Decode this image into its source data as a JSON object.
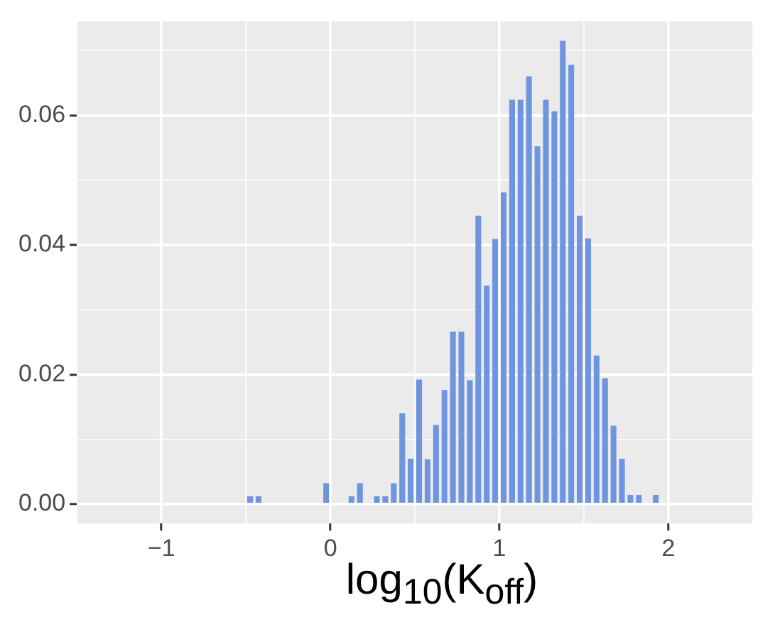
{
  "chart_data": {
    "type": "histogram",
    "xlabel": "log$_{10}$(K$_{off}$)",
    "bins": [
      -0.5,
      -0.45,
      -0.4,
      -0.35,
      -0.3,
      -0.25,
      -0.2,
      -0.15,
      -0.1,
      -0.05,
      0,
      0.05,
      0.1,
      0.15,
      0.2,
      0.25,
      0.3,
      0.35,
      0.4,
      0.45,
      0.5,
      0.55,
      0.6,
      0.65,
      0.7,
      0.75,
      0.8,
      0.85,
      0.9,
      0.95,
      1,
      1.05,
      1.1,
      1.15,
      1.2,
      1.25,
      1.3,
      1.35,
      1.4,
      1.45,
      1.5,
      1.55,
      1.6,
      1.65,
      1.7,
      1.75,
      1.8,
      1.85,
      1.9,
      1.95
    ],
    "values": [
      0.0012,
      0.0012,
      0,
      0,
      0,
      0,
      0,
      0,
      0,
      0.0032,
      0,
      0,
      0.0012,
      0.0032,
      0,
      0.0012,
      0.0012,
      0.0032,
      0.014,
      0.007,
      0.0192,
      0.0069,
      0.0122,
      0.0176,
      0.0266,
      0.0266,
      0.0191,
      0.0445,
      0.0337,
      0.0409,
      0.0481,
      0.0624,
      0.0624,
      0.066,
      0.0552,
      0.0624,
      0.0606,
      0.0715,
      0.0678,
      0.0445,
      0.041,
      0.0229,
      0.0194,
      0.0121,
      0.007,
      0.0014,
      0.0014,
      0,
      0.0014
    ],
    "color": "#6f95e0",
    "xlim": [
      -1.5,
      2.5
    ],
    "xticks": [
      {
        "value": -1.5,
        "label": null
      },
      {
        "value": -1,
        "label": "−1"
      },
      {
        "value": -0.5,
        "label": null
      },
      {
        "value": 0,
        "label": "0"
      },
      {
        "value": 0.5,
        "label": null
      },
      {
        "value": 1,
        "label": "1"
      },
      {
        "value": 1.5,
        "label": null
      },
      {
        "value": 2,
        "label": "2"
      },
      {
        "value": 2.5,
        "label": null
      }
    ],
    "ylim": [
      -0.003,
      0.0745
    ],
    "yticks": [
      {
        "value": 0,
        "label": "0.00"
      },
      {
        "value": 0.01,
        "label": null
      },
      {
        "value": 0.02,
        "label": "0.02"
      },
      {
        "value": 0.03,
        "label": null
      },
      {
        "value": 0.04,
        "label": "0.04"
      },
      {
        "value": 0.05,
        "label": null
      },
      {
        "value": 0.06,
        "label": "0.06"
      },
      {
        "value": 0.07,
        "label": null
      }
    ],
    "grid": true
  }
}
